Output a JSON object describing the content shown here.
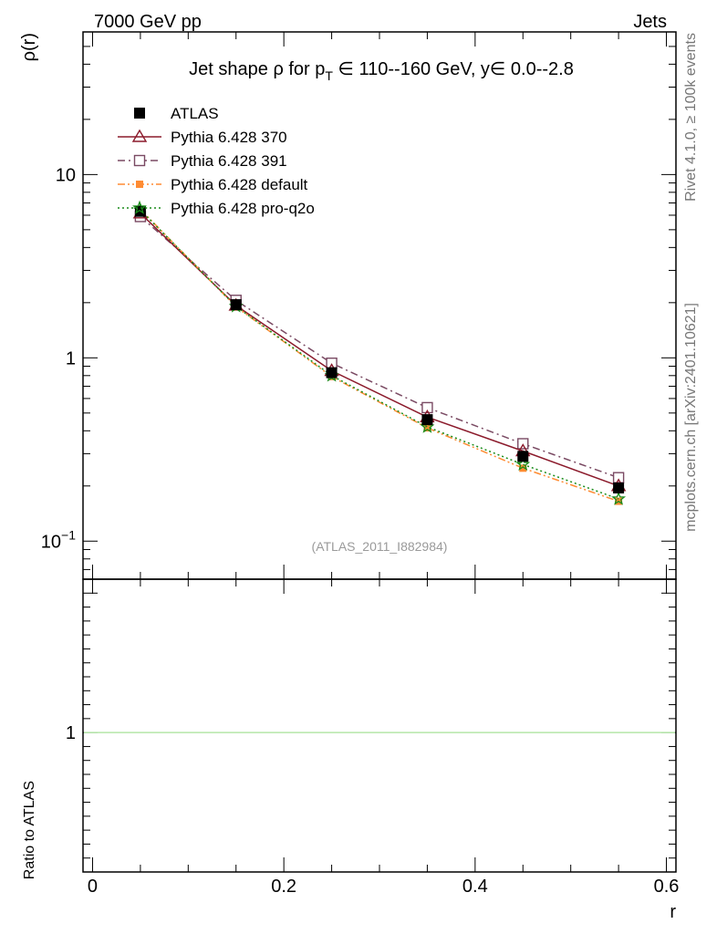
{
  "header": {
    "left": "7000 GeV pp",
    "right": "Jets"
  },
  "side_labels": {
    "rivet": "Rivet 4.1.0, ≥ 100k events",
    "mcplots": "mcplots.cern.ch [arXiv:2401.10621]"
  },
  "chart_data": [
    {
      "type": "line",
      "title": "Jet shape ρ for p_T ∈ 110--160 GeV, y∈ 0.0--2.8",
      "title_parts": {
        "pre": "Jet shape ρ for p",
        "sub": "T",
        "post": " ∈ 110--160 GeV, y∈ 0.0--2.8"
      },
      "ylabel": "ρ(r)",
      "xlabel": "r",
      "yscale": "log",
      "ylim": [
        0.062,
        60
      ],
      "xlim": [
        -0.01,
        0.61
      ],
      "grid": false,
      "legend_placement": "top-left",
      "watermark": "(ATLAS_2011_I882984)",
      "x": [
        0.05,
        0.15,
        0.25,
        0.35,
        0.45,
        0.55
      ],
      "series": [
        {
          "name": "ATLAS",
          "values": [
            6.3,
            1.95,
            0.83,
            0.46,
            0.29,
            0.195
          ],
          "color": "#000000",
          "marker": "filled-square",
          "line": "none"
        },
        {
          "name": "Pythia 6.428 370",
          "values": [
            6.15,
            1.93,
            0.85,
            0.475,
            0.31,
            0.2
          ],
          "color": "#8b1a2b",
          "marker": "open-triangle",
          "line": "solid"
        },
        {
          "name": "Pythia 6.428 391",
          "values": [
            5.9,
            2.06,
            0.935,
            0.535,
            0.34,
            0.222
          ],
          "color": "#7a4a63",
          "marker": "open-square",
          "line": "dash-dot"
        },
        {
          "name": "Pythia 6.428 default",
          "values": [
            6.45,
            1.9,
            0.79,
            0.415,
            0.25,
            0.165
          ],
          "color": "#ff8c33",
          "marker": "filled-square-small",
          "line": "dash-dot-dot"
        },
        {
          "name": "Pythia 6.428 pro-q2o",
          "values": [
            6.4,
            1.91,
            0.8,
            0.42,
            0.262,
            0.17
          ],
          "color": "#1a8c1a",
          "marker": "open-star",
          "line": "dotted"
        }
      ],
      "yticks": [
        {
          "value": 0.1,
          "label_base": "10",
          "label_exp": "−1"
        },
        {
          "value": 1,
          "label": "1"
        },
        {
          "value": 10,
          "label": "10"
        }
      ]
    },
    {
      "type": "line",
      "ylabel": "Ratio to ATLAS",
      "xlabel": "r",
      "ylim": [
        0.5,
        1.55
      ],
      "xlim": [
        -0.01,
        0.61
      ],
      "yticks": [
        {
          "value": 1,
          "label": "1"
        }
      ],
      "xticks": [
        {
          "value": 0,
          "label": "0"
        },
        {
          "value": 0.2,
          "label": "0.2"
        },
        {
          "value": 0.4,
          "label": "0.4"
        },
        {
          "value": 0.6,
          "label": "0.6"
        }
      ],
      "reference_line": {
        "value": 1,
        "color": "#b4e6a8"
      }
    }
  ]
}
